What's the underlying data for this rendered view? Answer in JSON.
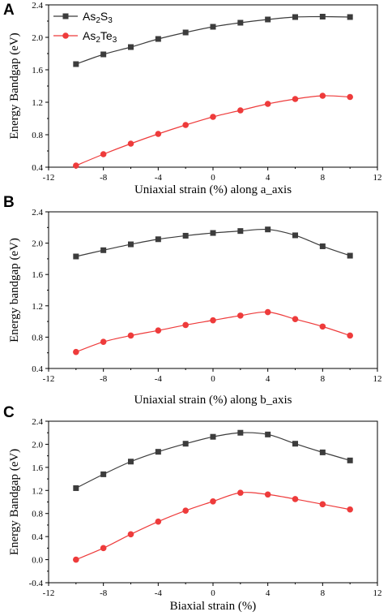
{
  "colors": {
    "series1": "#3c3c3c",
    "series2": "#ee3b3b",
    "axis": "#000000"
  },
  "legend": {
    "items": [
      {
        "base1": "As",
        "sub1": "2",
        "base2": "S",
        "sub2": "3",
        "marker": "square",
        "color": "#3c3c3c"
      },
      {
        "base1": "As",
        "sub1": "2",
        "base2": "Te",
        "sub2": "3",
        "marker": "circle",
        "color": "#ee3b3b"
      }
    ]
  },
  "chart_data": [
    {
      "type": "line",
      "panel_label": "A",
      "xlabel": "Uniaxial strain (%) along a_axis",
      "ylabel": "Energy Bandgap (eV)",
      "xlim": [
        -12,
        12
      ],
      "ylim": [
        0.4,
        2.4
      ],
      "xticks": [
        -12,
        -8,
        -4,
        0,
        4,
        8,
        12
      ],
      "yticks": [
        0.4,
        0.8,
        1.2,
        1.6,
        2.0,
        2.4
      ],
      "x": [
        -10,
        -8,
        -6,
        -4,
        -2,
        0,
        2,
        4,
        6,
        8,
        10
      ],
      "series": [
        {
          "name": "As2S3",
          "marker": "square",
          "values": [
            1.67,
            1.79,
            1.88,
            1.98,
            2.06,
            2.13,
            2.18,
            2.22,
            2.25,
            2.255,
            2.25
          ]
        },
        {
          "name": "As2Te3",
          "marker": "circle",
          "values": [
            0.42,
            0.56,
            0.69,
            0.81,
            0.92,
            1.02,
            1.1,
            1.18,
            1.24,
            1.28,
            1.265
          ]
        }
      ]
    },
    {
      "type": "line",
      "panel_label": "B",
      "xlabel": "Uniaxial strain (%) along b_axis",
      "ylabel": "Energy bandgap (eV)",
      "xlim": [
        -12,
        12
      ],
      "ylim": [
        0.4,
        2.4
      ],
      "xticks": [
        -12,
        -8,
        -4,
        0,
        4,
        8,
        12
      ],
      "yticks": [
        0.4,
        0.8,
        1.2,
        1.6,
        2.0,
        2.4
      ],
      "x": [
        -10,
        -8,
        -6,
        -4,
        -2,
        0,
        2,
        4,
        6,
        8,
        10
      ],
      "series": [
        {
          "name": "As2S3",
          "marker": "square",
          "values": [
            1.83,
            1.91,
            1.985,
            2.05,
            2.095,
            2.13,
            2.155,
            2.175,
            2.1,
            1.96,
            1.84
          ]
        },
        {
          "name": "As2Te3",
          "marker": "circle",
          "values": [
            0.61,
            0.74,
            0.82,
            0.885,
            0.955,
            1.015,
            1.075,
            1.12,
            1.03,
            0.935,
            0.82
          ]
        }
      ]
    },
    {
      "type": "line",
      "panel_label": "C",
      "xlabel": "Biaxial strain (%)",
      "ylabel": "Energy Bandgap (eV)",
      "xlim": [
        -12,
        12
      ],
      "ylim": [
        -0.4,
        2.4
      ],
      "xticks": [
        -12,
        -8,
        -4,
        0,
        4,
        8,
        12
      ],
      "yticks": [
        -0.4,
        0.0,
        0.4,
        0.8,
        1.2,
        1.6,
        2.0,
        2.4
      ],
      "x": [
        -10,
        -8,
        -6,
        -4,
        -2,
        0,
        2,
        4,
        6,
        8,
        10
      ],
      "series": [
        {
          "name": "As2S3",
          "marker": "square",
          "values": [
            1.24,
            1.48,
            1.7,
            1.87,
            2.01,
            2.13,
            2.2,
            2.17,
            2.01,
            1.86,
            1.72
          ]
        },
        {
          "name": "As2Te3",
          "marker": "circle",
          "values": [
            0.0,
            0.2,
            0.44,
            0.66,
            0.85,
            1.01,
            1.16,
            1.13,
            1.05,
            0.96,
            0.87
          ]
        }
      ]
    }
  ]
}
